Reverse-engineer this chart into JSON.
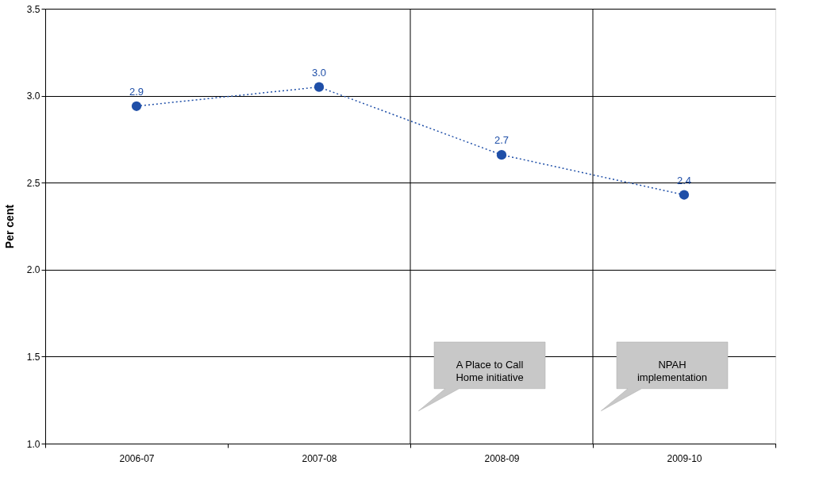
{
  "chart_data": {
    "type": "line",
    "categories": [
      "2006-07",
      "2007-08",
      "2008-09",
      "2009-10"
    ],
    "values": [
      2.94,
      3.05,
      2.66,
      2.43
    ],
    "value_labels": [
      "2.9",
      "3.0",
      "2.7",
      "2.4"
    ],
    "color": "#1f4fa8",
    "marker": "circle",
    "line_style": "dotted",
    "ylabel": "Per cent",
    "ylim": [
      1.0,
      3.5
    ],
    "yticks": [
      {
        "value": 1.0,
        "label": "1.0"
      },
      {
        "value": 1.5,
        "label": "1.5"
      },
      {
        "value": 2.0,
        "label": "2.0"
      },
      {
        "value": 2.5,
        "label": "2.5"
      },
      {
        "value": 3.0,
        "label": "3.0"
      },
      {
        "value": 3.5,
        "label": "3.5"
      }
    ],
    "grid": "y",
    "ref_lines": [
      {
        "axis": "x",
        "value": "2008-09",
        "label": "A Place to Call Home initiative"
      },
      {
        "axis": "x",
        "value": "2009-10",
        "label": "NPAH implementation"
      }
    ]
  }
}
